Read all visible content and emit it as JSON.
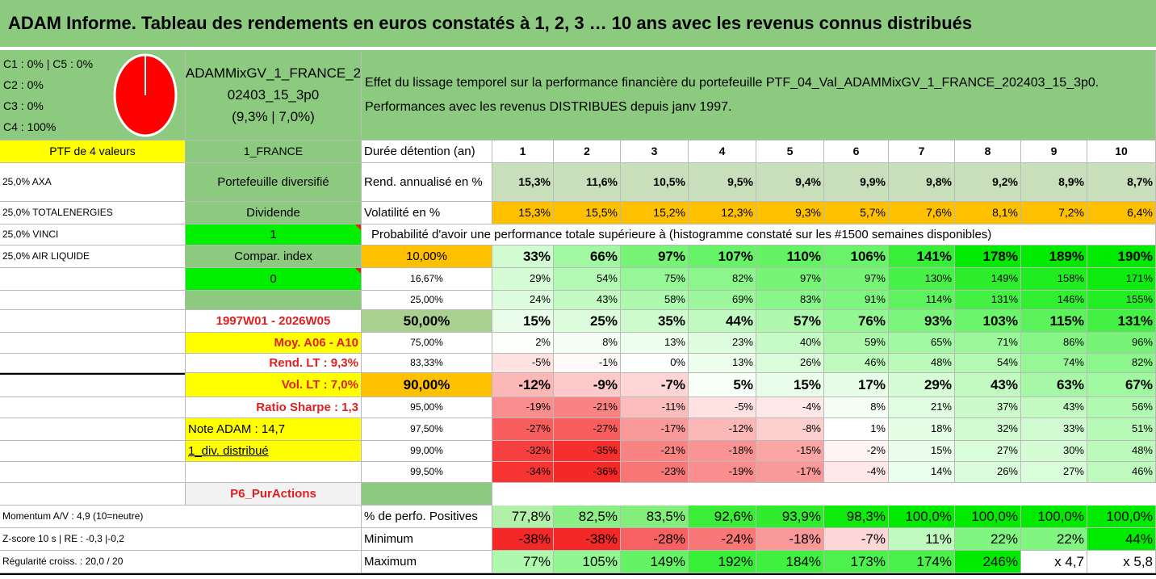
{
  "title": "ADAM Informe. Tableau des rendements en euros constatés à 1, 2, 3 … 10 ans avec les revenus connus distribués",
  "composition": [
    "C1 : 0% | C5 : 0%",
    "C2 : 0%",
    "C3 : 0%",
    "C4 : 100%"
  ],
  "pie": {
    "c4_share_percent": 100,
    "color": "#ff0000"
  },
  "fund_name": [
    "ADAMMixGV_1_FRANCE_2",
    "02403_15_3p0",
    "(9,3% | 7,0%)"
  ],
  "description": [
    "Effet du lissage temporel sur la performance financière du portefeuille PTF_04_Val_ADAMMixGV_1_FRANCE_202403_15_3p0.",
    "Performances avec les revenus DISTRIBUES depuis janv 1997."
  ],
  "left": {
    "ptf_label": "PTF de 4 valeurs",
    "holdings": [
      "25,0% AXA",
      "25,0% TOTALENERGIES",
      "25,0% VINCI",
      "25,0% AIR LIQUIDE"
    ],
    "country": "1_FRANCE",
    "portfolio_type": "Portefeuille diversifié",
    "dividend_label": "Dividende",
    "dividend_value": "1",
    "compar_label": "Compar. index",
    "compar_value": "0",
    "period": "1997W01 - 2026W05",
    "moy": "Moy. A06 - A10",
    "rend_lt": "Rend. LT : 9,3%",
    "vol_lt": "Vol. LT : 7,0%",
    "sharpe": "Ratio Sharpe : 1,3",
    "note": "Note ADAM : 14,7",
    "div_distrib": "1_div. distribué",
    "category": "P6_PurActions",
    "momentum": "Momentum A/V : 4,9 (10=neutre)",
    "zscore": "Z-score 10 s | RE : -0,3 |-0,2",
    "regularite": "Régularité croiss. : 20,0 / 20"
  },
  "table": {
    "duration_label": "Durée détention (an)",
    "years": [
      "1",
      "2",
      "3",
      "4",
      "5",
      "6",
      "7",
      "8",
      "9",
      "10"
    ],
    "rend_label": "Rend. annualisé en %",
    "rend": [
      "15,3%",
      "11,6%",
      "10,5%",
      "9,5%",
      "9,4%",
      "9,9%",
      "9,8%",
      "9,2%",
      "8,9%",
      "8,7%"
    ],
    "vol_label": "Volatilité en %",
    "vol": [
      "15,3%",
      "15,5%",
      "15,2%",
      "12,3%",
      "9,3%",
      "5,7%",
      "7,6%",
      "8,1%",
      "7,2%",
      "6,4%"
    ],
    "prob_title": "Probabilité d'avoir une performance totale supérieure à (histogramme constaté sur les #1500 semaines disponibles)",
    "quantiles": [
      {
        "label": "10,00%",
        "values": [
          "33%",
          "66%",
          "97%",
          "107%",
          "110%",
          "106%",
          "141%",
          "178%",
          "189%",
          "190%"
        ]
      },
      {
        "label": "16,67%",
        "values": [
          "29%",
          "54%",
          "75%",
          "82%",
          "97%",
          "97%",
          "130%",
          "149%",
          "158%",
          "171%"
        ]
      },
      {
        "label": "25,00%",
        "values": [
          "24%",
          "43%",
          "58%",
          "69%",
          "83%",
          "91%",
          "114%",
          "131%",
          "146%",
          "155%"
        ]
      },
      {
        "label": "50,00%",
        "values": [
          "15%",
          "25%",
          "35%",
          "44%",
          "57%",
          "76%",
          "93%",
          "103%",
          "115%",
          "131%"
        ]
      },
      {
        "label": "75,00%",
        "values": [
          "2%",
          "8%",
          "13%",
          "23%",
          "40%",
          "59%",
          "65%",
          "71%",
          "86%",
          "96%"
        ]
      },
      {
        "label": "83,33%",
        "values": [
          "-5%",
          "-1%",
          "0%",
          "13%",
          "26%",
          "46%",
          "48%",
          "54%",
          "74%",
          "82%"
        ]
      },
      {
        "label": "90,00%",
        "values": [
          "-12%",
          "-9%",
          "-7%",
          "5%",
          "15%",
          "17%",
          "29%",
          "43%",
          "63%",
          "67%"
        ]
      },
      {
        "label": "95,00%",
        "values": [
          "-19%",
          "-21%",
          "-11%",
          "-5%",
          "-4%",
          "8%",
          "21%",
          "37%",
          "43%",
          "56%"
        ]
      },
      {
        "label": "97,50%",
        "values": [
          "-27%",
          "-27%",
          "-17%",
          "-12%",
          "-8%",
          "1%",
          "18%",
          "32%",
          "33%",
          "51%"
        ]
      },
      {
        "label": "99,00%",
        "values": [
          "-32%",
          "-35%",
          "-21%",
          "-18%",
          "-15%",
          "-2%",
          "15%",
          "27%",
          "30%",
          "48%"
        ]
      },
      {
        "label": "99,50%",
        "values": [
          "-34%",
          "-36%",
          "-23%",
          "-19%",
          "-17%",
          "-4%",
          "14%",
          "26%",
          "27%",
          "46%"
        ]
      }
    ],
    "pos_label": "% de perfo. Positives",
    "pos": [
      "77,8%",
      "82,5%",
      "83,5%",
      "92,6%",
      "93,9%",
      "98,3%",
      "100,0%",
      "100,0%",
      "100,0%",
      "100,0%"
    ],
    "min_label": "Minimum",
    "min": [
      "-38%",
      "-38%",
      "-28%",
      "-24%",
      "-18%",
      "-7%",
      "11%",
      "22%",
      "22%",
      "44%"
    ],
    "max_label": "Maximum",
    "max": [
      "77%",
      "105%",
      "149%",
      "192%",
      "184%",
      "173%",
      "174%",
      "246%",
      "x 4,7",
      "x 5,8"
    ]
  },
  "colors": {
    "header_green": "#8ccb7f",
    "yellow": "#ffff00",
    "orange": "#ffc000",
    "bright_green": "#00f000",
    "red_text": "#e02020"
  }
}
